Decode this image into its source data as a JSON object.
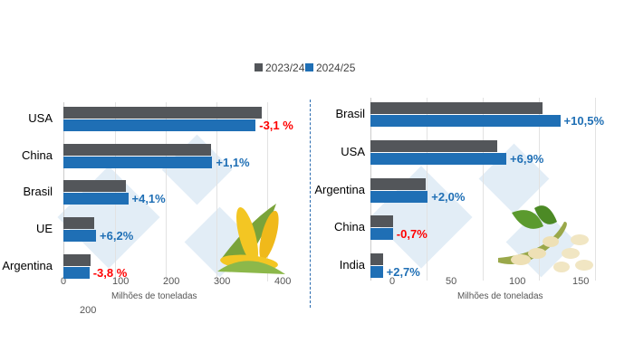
{
  "legend": {
    "items": [
      {
        "label": "2023/24",
        "color": "#53565a"
      },
      {
        "label": "2024/25",
        "color": "#1f6fb5"
      }
    ]
  },
  "extra_label": "200",
  "chart_data": [
    {
      "type": "bar",
      "orientation": "horizontal",
      "xlabel": "Milhões de toneladas",
      "xlim": [
        0,
        400
      ],
      "tick_labels": [
        "0",
        "100",
        "200",
        "300",
        "400"
      ],
      "categories": [
        "USA",
        "China",
        "Brasil",
        "UE",
        "Argentina"
      ],
      "series": [
        {
          "name": "2023/24",
          "values": [
            389,
            289,
            122,
            60,
            53
          ]
        },
        {
          "name": "2024/25",
          "values": [
            377,
            292,
            127,
            64,
            51
          ]
        }
      ],
      "annotations": [
        "-3,1 %",
        "+1,1%",
        "+4,1%",
        "+6,2%",
        "-3,8 %"
      ],
      "annotation_colors": [
        "#ff0000",
        "#1f6fb5",
        "#1f6fb5",
        "#1f6fb5",
        "#ff0000"
      ],
      "grid": true,
      "legend": "top"
    },
    {
      "type": "bar",
      "orientation": "horizontal",
      "xlabel": "Milhões de toneladas",
      "tick_labels": [
        "0",
        "50",
        "100",
        "150"
      ],
      "categories": [
        "Brasil",
        "USA",
        "Argentina",
        "China",
        "India"
      ],
      "series": [
        {
          "name": "2023/24",
          "values": [
            153,
            113,
            49,
            20,
            11
          ]
        },
        {
          "name": "2024/25",
          "values": [
            169,
            121,
            51,
            20,
            11
          ]
        }
      ],
      "annotations": [
        "+10,5%",
        "+6,9%",
        "+2,0%",
        "-0,7%",
        "+2,7%"
      ],
      "annotation_colors": [
        "#1f6fb5",
        "#1f6fb5",
        "#1f6fb5",
        "#ff0000",
        "#1f6fb5"
      ],
      "grid": true,
      "legend": "top"
    }
  ]
}
